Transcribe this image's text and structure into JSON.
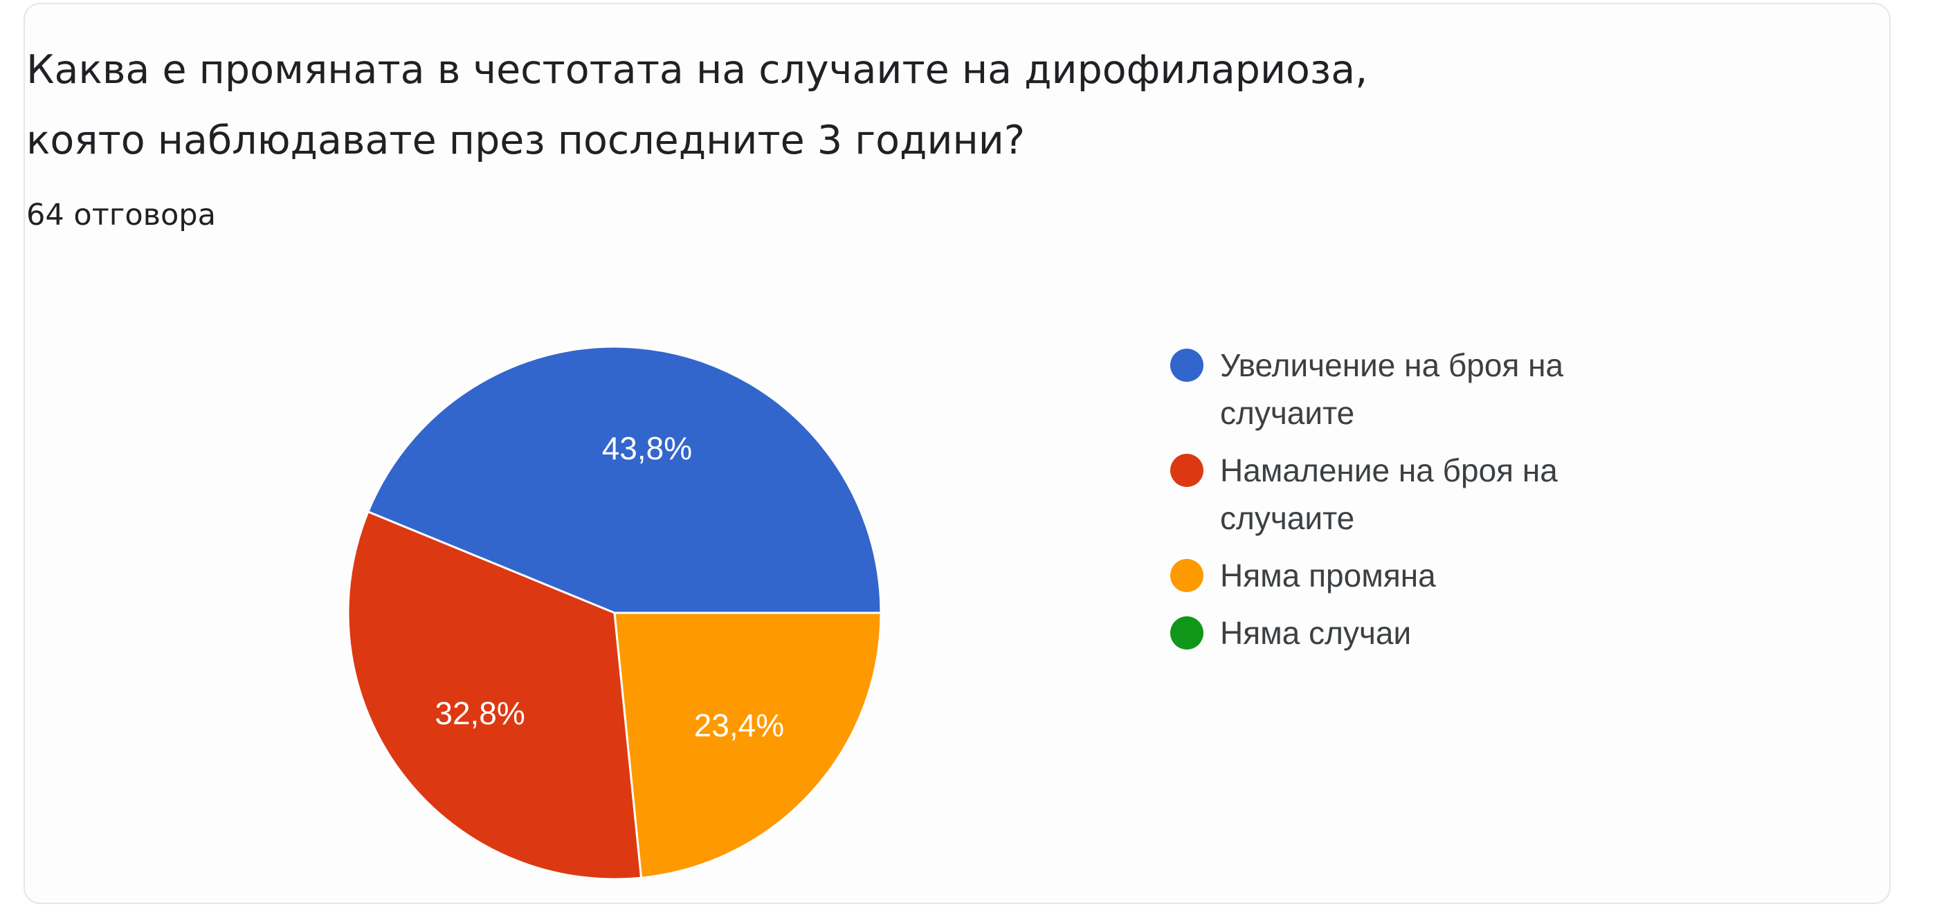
{
  "card": {
    "title_line1": "Каква е промяната в честотата на случаите на дирофилариоза,",
    "title_line2": "която наблюдавате през последните 3 години?",
    "responses": "64 отговора"
  },
  "chart_data": {
    "type": "pie",
    "title": "Каква е промяната в честотата на случаите на дирофилариоза, която наблюдавате през последните 3 години?",
    "categories": [
      "Увеличение на броя на случаите",
      "Намаление на броя на случаите",
      "Няма промяна",
      "Няма случаи"
    ],
    "legend_lines": [
      [
        "Увеличение на броя на",
        "случаите"
      ],
      [
        "Намаление на броя на",
        "случаите"
      ],
      [
        "Няма промяна"
      ],
      [
        "Няма случаи"
      ]
    ],
    "values": [
      43.8,
      32.8,
      23.4,
      0
    ],
    "data_labels": [
      "43,8%",
      "32,8%",
      "23,4%",
      ""
    ],
    "colors": [
      "#3366cc",
      "#dc3912",
      "#ff9900",
      "#109618"
    ],
    "legend_position": "right"
  }
}
